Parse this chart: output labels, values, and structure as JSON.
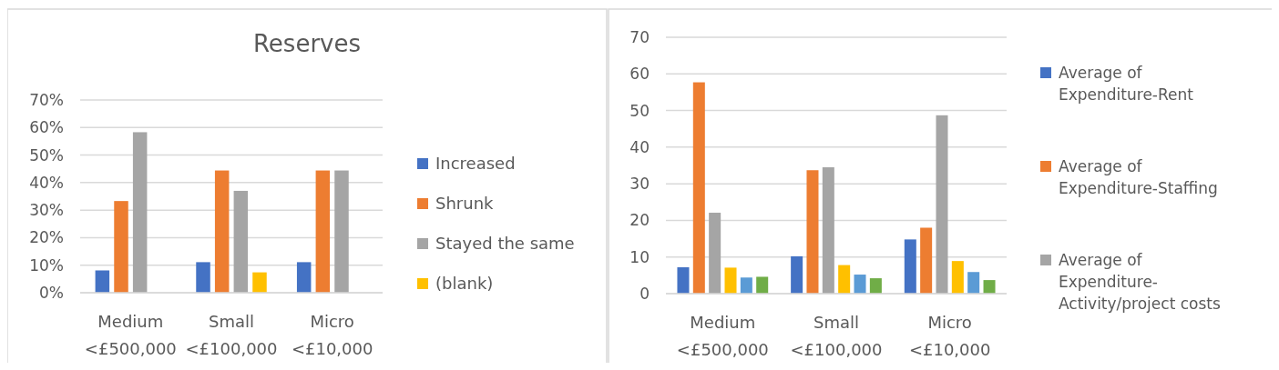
{
  "chart_data": [
    {
      "type": "bar",
      "title": "Reserves",
      "categories": [
        "Medium <£500,000",
        "Small <£100,000",
        "Micro <£10,000"
      ],
      "series": [
        {
          "name": "Increased",
          "color": "#4472c4",
          "values": [
            8.1,
            11.1,
            11.1
          ]
        },
        {
          "name": "Shrunk",
          "color": "#ed7d31",
          "values": [
            33.3,
            44.4,
            44.4
          ]
        },
        {
          "name": "Stayed the same",
          "color": "#a5a5a5",
          "values": [
            58.3,
            37,
            44.4
          ]
        },
        {
          "name": "(blank)",
          "color": "#ffc000",
          "values": [
            null,
            7.4,
            null
          ]
        }
      ],
      "ylim": [
        0,
        70
      ],
      "yticks": [
        {
          "value": 0,
          "label": "0%"
        },
        {
          "value": 10,
          "label": "10%"
        },
        {
          "value": 20,
          "label": "20%"
        },
        {
          "value": 30,
          "label": "30%"
        },
        {
          "value": 40,
          "label": "40%"
        },
        {
          "value": 50,
          "label": "50%"
        },
        {
          "value": 60,
          "label": "60%"
        },
        {
          "value": 70,
          "label": "70%"
        }
      ],
      "grid": "y",
      "legend": "right"
    },
    {
      "type": "bar",
      "categories": [
        "Medium <£500,000",
        "Small <£100,000",
        "Micro <£10,000"
      ],
      "series": [
        {
          "name": "Average of Expenditure-Rent",
          "color": "#4472c4",
          "values": [
            7.2,
            10.2,
            14.8
          ]
        },
        {
          "name": "Average of Expenditure-Staffing",
          "color": "#ed7d31",
          "values": [
            57.7,
            33.7,
            18
          ]
        },
        {
          "name": "Average of Expenditure-Activity/project costs",
          "color": "#a5a5a5",
          "values": [
            22.1,
            34.5,
            48.7
          ]
        },
        {
          "color": "#ffc000",
          "values": [
            7.1,
            7.8,
            8.9
          ]
        },
        {
          "color": "#5b9bd5",
          "values": [
            4.4,
            5.2,
            5.9
          ]
        },
        {
          "color": "#70ad47",
          "values": [
            4.6,
            4.2,
            3.7
          ]
        }
      ],
      "ylim": [
        0,
        70
      ],
      "yticks": [
        0,
        10,
        20,
        30,
        40,
        50,
        60,
        70
      ],
      "grid": "y",
      "legend": "right"
    }
  ]
}
